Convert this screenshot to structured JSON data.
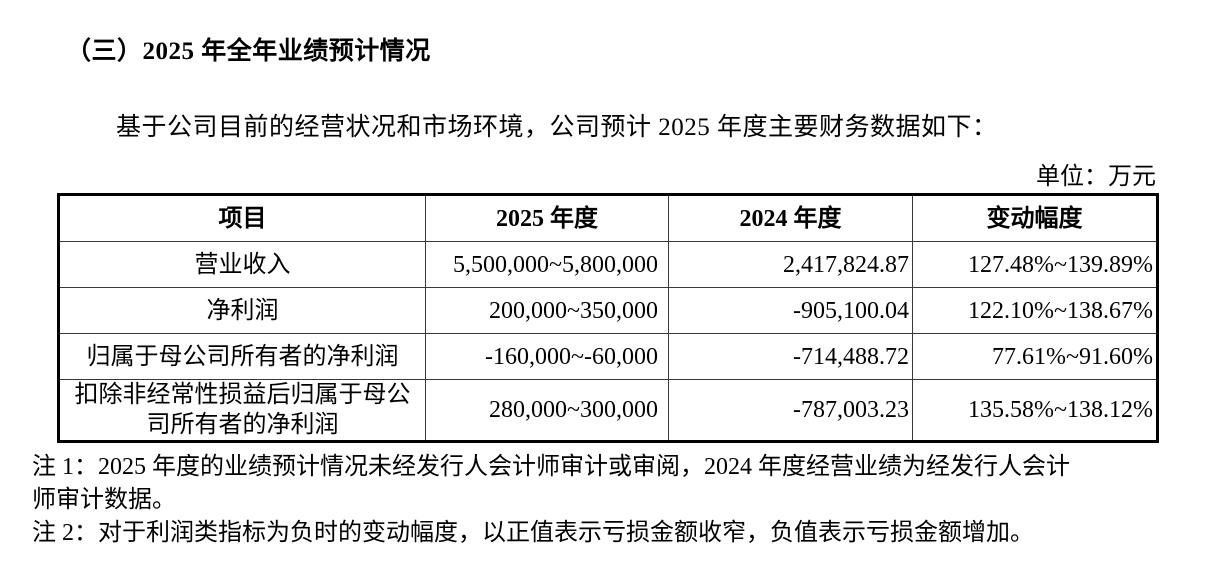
{
  "document": {
    "section_title": "（三）2025 年全年业绩预计情况",
    "intro": "基于公司目前的经营状况和市场环境，公司预计 2025 年度主要财务数据如下：",
    "unit_label": "单位：万元",
    "table": {
      "headers": [
        "项目",
        "2025 年度",
        "2024 年度",
        "变动幅度"
      ],
      "rows": [
        {
          "item": "营业收入",
          "y2025": "5,500,000~5,800,000",
          "y2024": "2,417,824.87",
          "change": "127.48%~139.89%"
        },
        {
          "item": "净利润",
          "y2025": "200,000~350,000",
          "y2024": "-905,100.04",
          "change": "122.10%~138.67%"
        },
        {
          "item": "归属于母公司所有者的净利润",
          "y2025": "-160,000~-60,000",
          "y2024": "-714,488.72",
          "change": "77.61%~91.60%"
        },
        {
          "item": "扣除非经常性损益后归属于母公司所有者的净利润",
          "y2025": "280,000~300,000",
          "y2024": "-787,003.23",
          "change": "135.58%~138.12%"
        }
      ]
    },
    "notes": [
      "注 1：2025 年度的业绩预计情况未经发行人会计师审计或审阅，2024 年度经营业绩为经发行人会计\n师审计数据。",
      "注 2：对于利润类指标为负时的变动幅度，以正值表示亏损金额收窄，负值表示亏损金额增加。"
    ]
  }
}
